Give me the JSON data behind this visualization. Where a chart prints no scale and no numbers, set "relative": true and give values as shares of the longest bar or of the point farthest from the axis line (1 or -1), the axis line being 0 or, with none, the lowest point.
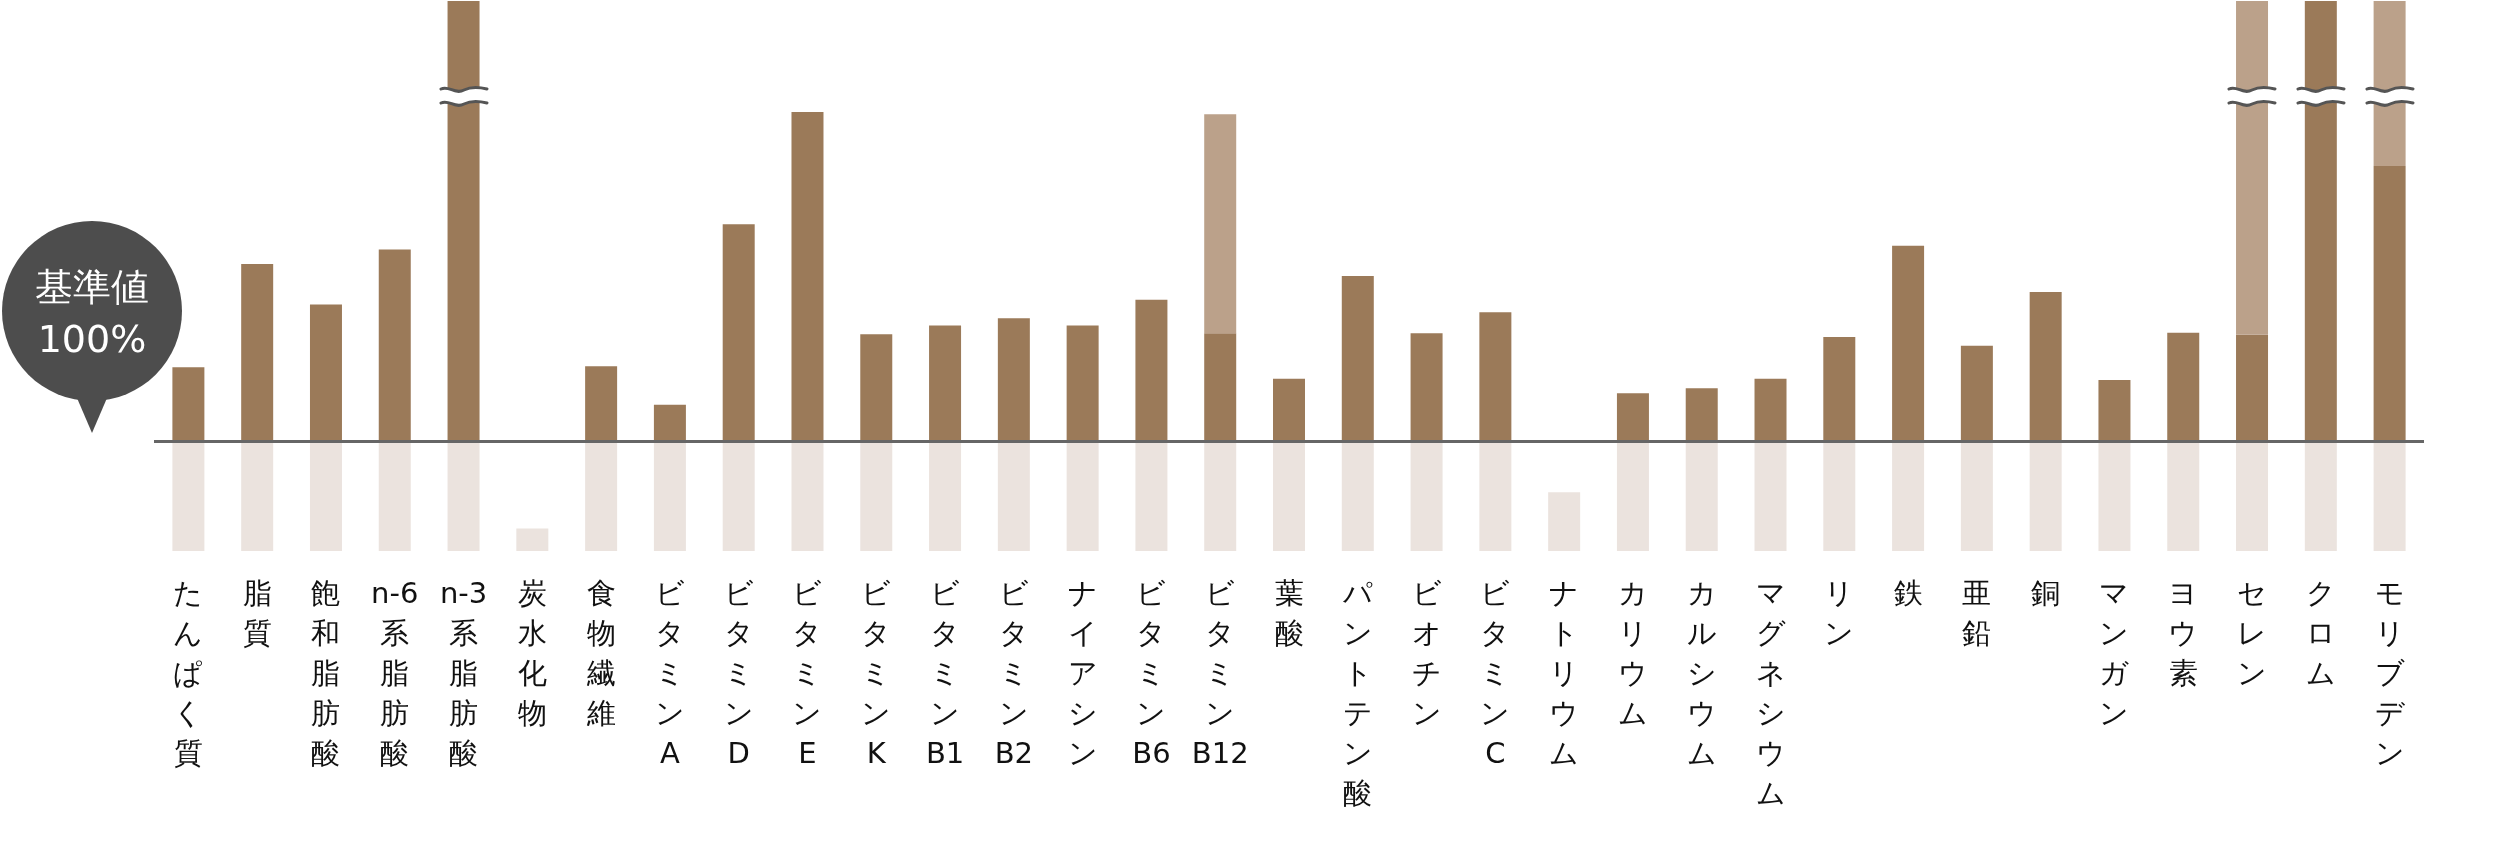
{
  "chart_data": {
    "type": "bar",
    "relative": true,
    "stacked": true,
    "annotations": [
      "基準値",
      "100%"
    ],
    "ref_lines": [
      {
        "axis": "y",
        "value": 0.2,
        "color": "#666666",
        "line_style": "solid"
      }
    ],
    "categories": [
      "たんぱく質",
      "脂質",
      "飽和脂肪酸",
      "n-6系脂肪酸",
      "n-3系脂肪酸",
      "炭水化物",
      "食物繊維",
      "ビタミンA",
      "ビタミンD",
      "ビタミンE",
      "ビタミンK",
      "ビタミンB1",
      "ビタミンB2",
      "ナイアシン",
      "ビタミンB6",
      "ビタミンB12",
      "葉酸",
      "パントテン酸",
      "ビオチン",
      "ビタミンC",
      "ナトリウム",
      "カリウム",
      "カルシウム",
      "マグネシウム",
      "リン",
      "鉄",
      "亜鉛",
      "銅",
      "マンガン",
      "ヨウ素",
      "セレン",
      "クロム",
      "モリブデン"
    ],
    "series": [
      {
        "color": "#ebe3de",
        "values": [
          0.2,
          0.2,
          0.2,
          0.2,
          0.2,
          0.041,
          0.2,
          0.2,
          0.2,
          0.2,
          0.2,
          0.2,
          0.2,
          0.2,
          0.2,
          0.2,
          0.2,
          0.2,
          0.2,
          0.2,
          0.107,
          0.2,
          0.2,
          0.2,
          0.2,
          0.2,
          0.2,
          0.2,
          0.2,
          0.2,
          0.2,
          0.2,
          0.2
        ]
      },
      {
        "color": "#9b7a59",
        "values": [
          0.134,
          0.322,
          0.248,
          0.348,
          0.8,
          null,
          0.136,
          0.066,
          0.394,
          0.598,
          0.194,
          0.21,
          0.223,
          0.21,
          0.257,
          0.196,
          0.113,
          0.3,
          0.196,
          0.234,
          null,
          0.087,
          0.096,
          0.113,
          0.189,
          0.355,
          0.173,
          0.271,
          0.111,
          0.197,
          0.193,
          0.8,
          0.5
        ]
      },
      {
        "color": "#bba18a",
        "values": [
          null,
          null,
          null,
          null,
          null,
          null,
          null,
          null,
          null,
          null,
          null,
          null,
          null,
          null,
          null,
          0.398,
          null,
          null,
          null,
          null,
          null,
          null,
          null,
          null,
          null,
          null,
          null,
          null,
          null,
          null,
          0.607,
          null,
          0.3
        ]
      }
    ]
  }
}
